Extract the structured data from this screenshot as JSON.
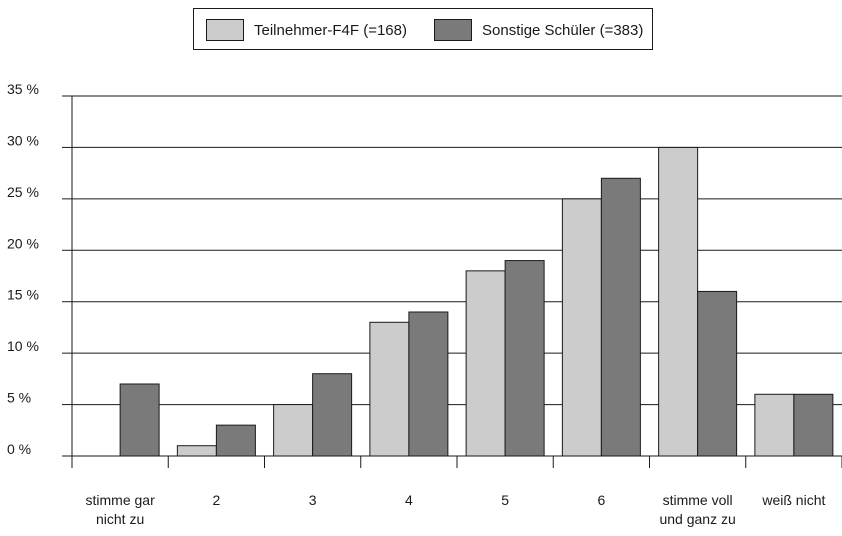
{
  "chart_data": {
    "type": "bar",
    "categories": [
      "stimme gar nicht zu",
      "2",
      "3",
      "4",
      "5",
      "6",
      "stimme voll und ganz zu",
      "weiß nicht"
    ],
    "category_lines": [
      [
        "stimme gar",
        "nicht zu"
      ],
      [
        "2"
      ],
      [
        "3"
      ],
      [
        "4"
      ],
      [
        "5"
      ],
      [
        "6"
      ],
      [
        "stimme voll",
        "und ganz zu"
      ],
      [
        "weiß nicht"
      ]
    ],
    "series": [
      {
        "name": "Teilnehmer-F4F (=168)",
        "color": "#cccccc",
        "values": [
          0,
          1,
          5,
          13,
          18,
          25,
          30,
          6
        ]
      },
      {
        "name": "Sonstige Schüler (=383)",
        "color": "#7a7a7a",
        "values": [
          7,
          3,
          8,
          14,
          19,
          27,
          16,
          6
        ]
      }
    ],
    "ylim": [
      0,
      35
    ],
    "yticks": [
      0,
      5,
      10,
      15,
      20,
      25,
      30,
      35
    ],
    "ytick_labels": [
      "0 %",
      "5 %",
      "10 %",
      "15 %",
      "20 %",
      "25 %",
      "30 %",
      "35 %"
    ],
    "grid": true,
    "legend_position": "top-center",
    "title": "",
    "xlabel": "",
    "ylabel": ""
  }
}
